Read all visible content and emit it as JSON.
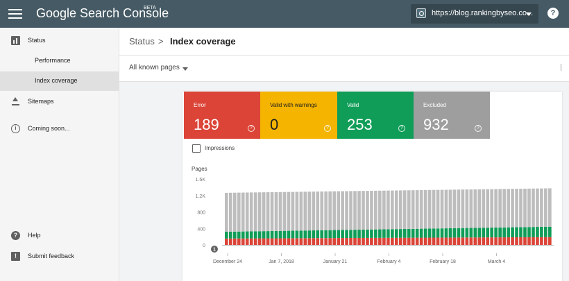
{
  "topbar": {
    "app_title": "Google Search Console",
    "beta": "BETA",
    "property": "https://blog.rankingbyseo.co...",
    "help_symbol": "?"
  },
  "sidebar": {
    "items": [
      {
        "label": "Status",
        "icon": "bar-chart-icon"
      },
      {
        "label": "Performance"
      },
      {
        "label": "Index coverage",
        "active": true
      },
      {
        "label": "Sitemaps",
        "icon": "upload-icon"
      },
      {
        "label": "Coming soon...",
        "icon": "info-icon",
        "icon_symbol": "i"
      }
    ],
    "bottom_items": [
      {
        "label": "Help",
        "icon": "help-icon",
        "icon_symbol": "?"
      },
      {
        "label": "Submit feedback",
        "icon": "feedback-icon",
        "icon_symbol": "!"
      }
    ]
  },
  "header": {
    "breadcrumb_root": "Status",
    "separator": ">",
    "title": "Index coverage"
  },
  "filter": {
    "value": "All known pages"
  },
  "tiles": [
    {
      "label": "Error",
      "value": "189",
      "color": "#db4437"
    },
    {
      "label": "Valid with warnings",
      "value": "0",
      "color": "#f4b400"
    },
    {
      "label": "Valid",
      "value": "253",
      "color": "#0f9d58"
    },
    {
      "label": "Excluded",
      "value": "932",
      "color": "#9e9e9e"
    }
  ],
  "impressions_label": "Impressions",
  "chart_data": {
    "type": "bar",
    "stacked": true,
    "ylabel": "Pages",
    "yticks": [
      "0",
      "400",
      "800",
      "1.2K",
      "1.6K"
    ],
    "ylim": [
      0,
      1600
    ],
    "xtick_labels": [
      "December 24",
      "Jan 7, 2018",
      "January 21",
      "February 4",
      "February 18",
      "March 4"
    ],
    "annotation_marker": "1",
    "series": [
      {
        "name": "Error",
        "color": "#db4437",
        "start": 155,
        "end": 189
      },
      {
        "name": "Valid with warnings",
        "color": "#f4b400",
        "start": 0,
        "end": 0
      },
      {
        "name": "Valid",
        "color": "#0f9d58",
        "start": 165,
        "end": 253
      },
      {
        "name": "Excluded",
        "color": "#bdbdbd",
        "start": 945,
        "end": 932
      }
    ],
    "bar_count": 79
  }
}
